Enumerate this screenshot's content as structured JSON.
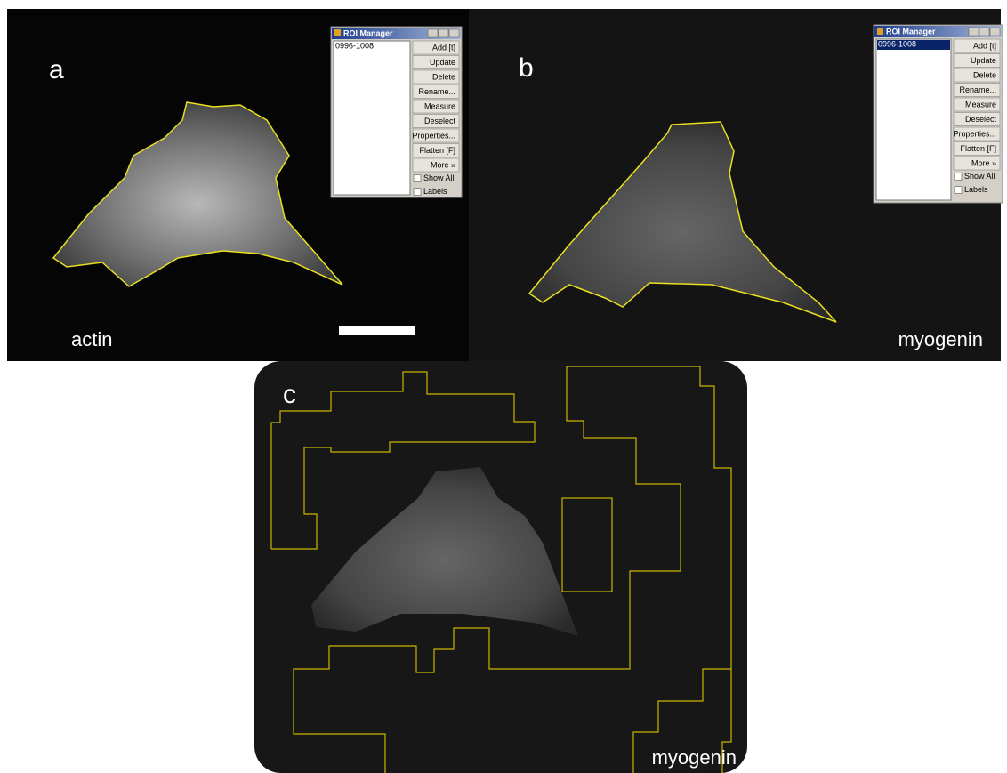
{
  "panels": [
    {
      "label": "a",
      "caption": "actin",
      "roi_manager": {
        "title": "ROI Manager",
        "items": [
          "0996-1008"
        ],
        "selected": false,
        "buttons": [
          "Add [t]",
          "Update",
          "Delete",
          "Rename...",
          "Measure",
          "Deselect",
          "Properties...",
          "Flatten [F]",
          "More »"
        ],
        "checkboxes": [
          "Show All",
          "Labels"
        ]
      }
    },
    {
      "label": "b",
      "caption": "myogenin",
      "roi_manager": {
        "title": "ROI Manager",
        "items": [
          "0996-1008"
        ],
        "selected": true,
        "buttons": [
          "Add [t]",
          "Update",
          "Delete",
          "Rename...",
          "Measure",
          "Deselect",
          "Properties...",
          "Flatten [F]",
          "More »"
        ],
        "checkboxes": [
          "Show All",
          "Labels"
        ]
      }
    },
    {
      "label": "c",
      "caption": "myogenin"
    }
  ]
}
